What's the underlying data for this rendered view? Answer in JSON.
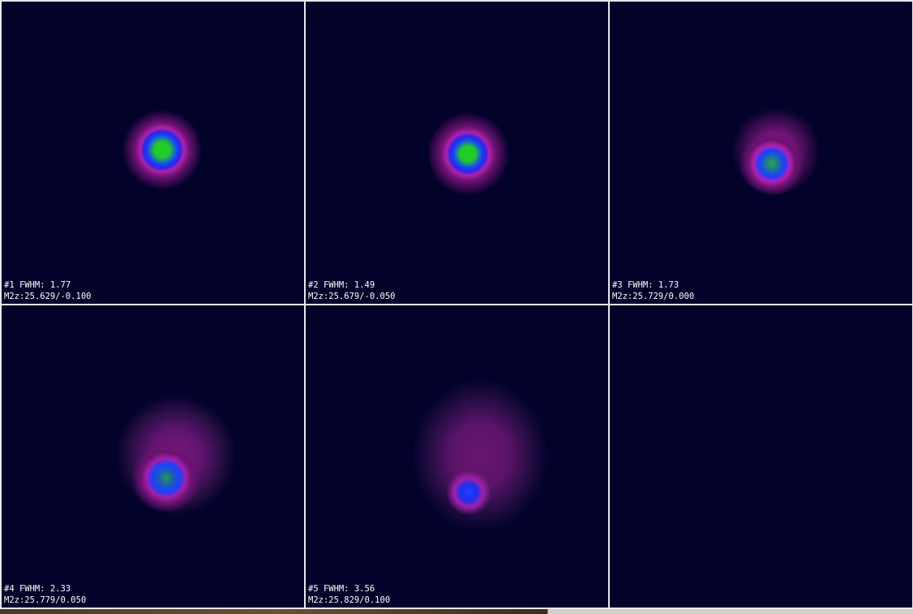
{
  "panels": [
    {
      "label": "#1 FWHM: 1.77",
      "m2z": "M2z:25.629/-0.100"
    },
    {
      "label": "#2 FWHM: 1.49",
      "m2z": "M2z:25.679/-0.050"
    },
    {
      "label": "#3 FWHM: 1.73",
      "m2z": "M2z:25.729/0.000"
    },
    {
      "label": "#4 FWHM: 2.33",
      "m2z": "M2z:25.779/0.050"
    },
    {
      "label": "#5 FWHM: 3.56",
      "m2z": "M2z:25.829/0.100"
    }
  ],
  "colors": {
    "background": "#03022b",
    "peak": "#22d822",
    "mid": "#2030ff",
    "halo": "#a020a0"
  }
}
